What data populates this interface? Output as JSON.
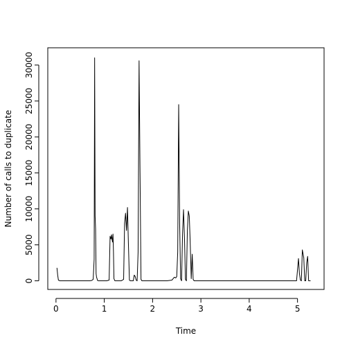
{
  "chart_data": {
    "type": "line",
    "title": "",
    "xlabel": "Time",
    "ylabel": "Number of calls to duplicate",
    "xlim": [
      -0.17,
      5.55
    ],
    "ylim": [
      -1200,
      32400
    ],
    "x_ticks": [
      0,
      1,
      2,
      3,
      4,
      5
    ],
    "x_tick_labels": [
      "0",
      "1",
      "2",
      "3",
      "4",
      "5"
    ],
    "y_ticks": [
      0,
      5000,
      10000,
      15000,
      20000,
      25000,
      30000
    ],
    "y_tick_labels": [
      "0",
      "5000",
      "10000",
      "15000",
      "20000",
      "25000",
      "30000"
    ],
    "grid": false,
    "legend": "none",
    "line_color": "#000000",
    "series": [
      {
        "x": [
          0.02,
          0.035,
          0.05,
          0.08,
          0.12,
          0.5,
          0.7,
          0.74,
          0.77,
          0.79,
          0.8,
          0.81,
          0.82,
          0.83,
          0.84,
          0.85,
          0.86,
          0.88,
          0.9,
          0.95,
          1.05,
          1.1,
          1.12,
          1.14,
          1.15,
          1.17,
          1.18,
          1.19,
          1.2,
          1.22,
          1.24,
          1.26,
          1.35,
          1.4,
          1.42,
          1.44,
          1.46,
          1.48,
          1.5,
          1.52,
          1.54,
          1.56,
          1.6,
          1.62,
          1.64,
          1.66,
          1.68,
          1.7,
          1.72,
          1.74,
          1.76,
          1.78,
          1.8,
          1.82,
          1.86,
          2.3,
          2.4,
          2.45,
          2.48,
          2.5,
          2.52,
          2.54,
          2.56,
          2.58,
          2.6,
          2.62,
          2.64,
          2.66,
          2.68,
          2.7,
          2.72,
          2.74,
          2.76,
          2.78,
          2.8,
          2.82,
          2.84,
          2.86,
          2.88,
          2.9,
          2.92,
          2.94,
          3.0,
          4.6,
          4.98,
          5.0,
          5.02,
          5.04,
          5.06,
          5.08,
          5.1,
          5.13,
          5.15,
          5.17,
          5.19,
          5.21,
          5.23,
          5.25,
          5.27
        ],
        "y": [
          1800,
          800,
          100,
          0,
          0,
          0,
          0,
          50,
          200,
          3000,
          31000,
          9000,
          7200,
          1000,
          500,
          300,
          50,
          0,
          0,
          0,
          0,
          100,
          6200,
          5800,
          6400,
          5400,
          6500,
          4000,
          300,
          0,
          0,
          0,
          0,
          200,
          8000,
          9400,
          7000,
          10200,
          5000,
          100,
          0,
          0,
          0,
          800,
          600,
          100,
          0,
          4000,
          30600,
          15000,
          200,
          0,
          0,
          0,
          0,
          0,
          100,
          500,
          400,
          600,
          4000,
          24500,
          8000,
          300,
          0,
          6500,
          9900,
          6000,
          200,
          0,
          7000,
          9700,
          9000,
          5000,
          300,
          3700,
          200,
          0,
          0,
          0,
          0,
          0,
          0,
          0,
          0,
          1500,
          3100,
          1000,
          100,
          0,
          4300,
          3200,
          0,
          0,
          2500,
          3400,
          0,
          0,
          0
        ]
      }
    ]
  }
}
